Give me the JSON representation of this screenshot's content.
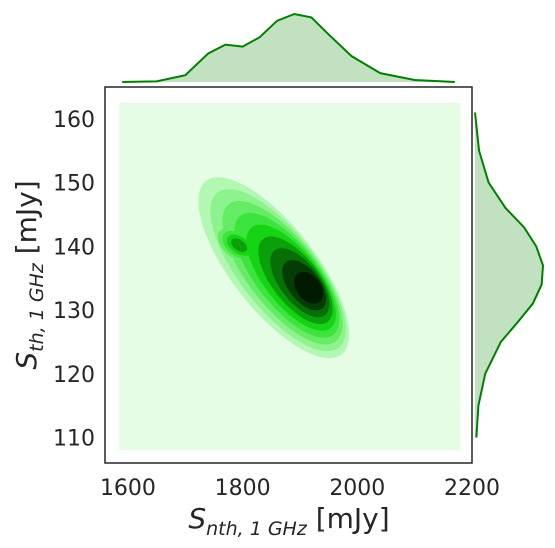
{
  "chart_data": {
    "type": "jointplot-kde",
    "x_axis": {
      "label_main": "S",
      "label_sub": "nth, 1 GHz",
      "label_unit": " [mJy]",
      "range": [
        1560,
        2200
      ],
      "ticks": [
        1600,
        1800,
        2000,
        2200
      ],
      "tick_labels": [
        "1600",
        "1800",
        "2000",
        "2200"
      ]
    },
    "y_axis": {
      "label_main": "S",
      "label_sub": "th, 1 GHz",
      "label_unit": " [mJy]",
      "range": [
        106,
        165
      ],
      "ticks": [
        110,
        120,
        130,
        140,
        150,
        160
      ],
      "tick_labels": [
        "110",
        "120",
        "130",
        "140",
        "150",
        "160"
      ]
    },
    "kde_support": {
      "x": [
        1585,
        2180
      ],
      "y": [
        108,
        162.5
      ]
    },
    "joint_density": {
      "center": [
        1915,
        133.5
      ],
      "secondary_mode": [
        1780,
        140.5
      ],
      "correlation": "negative",
      "contour_levels": 9,
      "colors": [
        "#e5fde5",
        "#b2f8b2",
        "#8ef38e",
        "#65ec65",
        "#3ee43e",
        "#14d414",
        "#0aa00a",
        "#067006",
        "#043d04",
        "#001a00"
      ]
    },
    "marginal_x": {
      "x": [
        1590,
        1650,
        1700,
        1740,
        1770,
        1800,
        1830,
        1860,
        1890,
        1920,
        1950,
        1990,
        2040,
        2100,
        2170
      ],
      "density": [
        0.0,
        0.01,
        0.1,
        0.42,
        0.55,
        0.52,
        0.66,
        0.9,
        1.0,
        0.95,
        0.7,
        0.38,
        0.13,
        0.03,
        0.0
      ]
    },
    "marginal_y": {
      "y": [
        110,
        115,
        120,
        125,
        128,
        131,
        134,
        137,
        140,
        143,
        146,
        150,
        155,
        161
      ],
      "density": [
        0.02,
        0.05,
        0.15,
        0.38,
        0.62,
        0.85,
        0.98,
        1.0,
        0.9,
        0.72,
        0.45,
        0.2,
        0.06,
        0.0
      ]
    },
    "line_color": "#008000",
    "fill_color": "#c1e1c1",
    "grid": false,
    "legend": "none"
  }
}
